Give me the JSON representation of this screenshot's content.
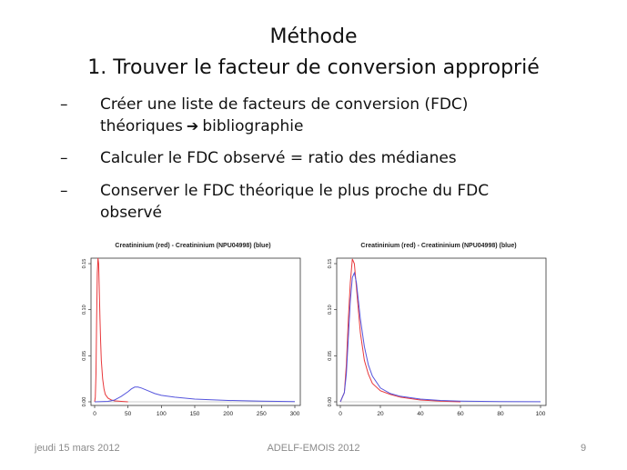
{
  "slide": {
    "title_line1": "Méthode",
    "title_line2": "1. Trouver le facteur de conversion approprié",
    "bullets": [
      {
        "dash": "–",
        "line1": "Créer une liste de facteurs de conversion (FDC)",
        "line2_before": "théoriques",
        "arrow": "➔",
        "line2_after": "bibliographie"
      },
      {
        "dash": "–",
        "line1": "Calculer le FDC observé = ratio des médianes"
      },
      {
        "dash": "–",
        "line1": "Conserver le FDC théorique le plus proche du FDC",
        "line2": "observé"
      }
    ],
    "footer": {
      "date": "jeudi 15 mars 2012",
      "center": "ADELF-EMOIS 2012",
      "page": "9"
    }
  },
  "chart_data": [
    {
      "type": "line",
      "title": "Creatininium (red) - Creatininium (NPU04998) (blue)",
      "xlim": [
        0,
        300
      ],
      "ylim": [
        0,
        0.15
      ],
      "x_ticks": [
        "0",
        "50",
        "100",
        "150",
        "200",
        "250",
        "300"
      ],
      "y_ticks": [
        "0.00",
        "0.05",
        "0.10",
        "0.15"
      ],
      "colors": {
        "red": "#e8383b",
        "blue": "#5555dd"
      },
      "series": [
        {
          "color": "red",
          "x": [
            0,
            1,
            2,
            3,
            4,
            5,
            6,
            7,
            8,
            9,
            10,
            12,
            14,
            16,
            20,
            25,
            30,
            40,
            50
          ],
          "y": [
            0,
            0.005,
            0.03,
            0.09,
            0.14,
            0.156,
            0.15,
            0.12,
            0.09,
            0.065,
            0.045,
            0.025,
            0.014,
            0.008,
            0.004,
            0.002,
            0.001,
            0.0005,
            0
          ]
        },
        {
          "color": "blue",
          "x": [
            0,
            20,
            30,
            40,
            50,
            55,
            60,
            65,
            70,
            80,
            90,
            100,
            120,
            150,
            200,
            250,
            300
          ],
          "y": [
            0,
            0.0005,
            0.002,
            0.006,
            0.011,
            0.014,
            0.016,
            0.016,
            0.015,
            0.012,
            0.009,
            0.007,
            0.005,
            0.003,
            0.0015,
            0.0007,
            0.0003
          ]
        }
      ]
    },
    {
      "type": "line",
      "title": "Creatininium (red) - Creatininium (NPU04998) (blue)",
      "xlim": [
        0,
        100
      ],
      "ylim": [
        0,
        0.15
      ],
      "x_ticks": [
        "0",
        "20",
        "40",
        "60",
        "80",
        "100"
      ],
      "y_ticks": [
        "0.00",
        "0.05",
        "0.10",
        "0.15"
      ],
      "colors": {
        "red": "#e8383b",
        "blue": "#5555dd"
      },
      "series": [
        {
          "color": "red",
          "x": [
            0,
            2,
            3,
            4,
            5,
            6,
            7,
            8,
            9,
            10,
            12,
            14,
            16,
            20,
            25,
            30,
            40,
            50,
            60
          ],
          "y": [
            0,
            0.01,
            0.04,
            0.09,
            0.13,
            0.155,
            0.15,
            0.125,
            0.1,
            0.075,
            0.045,
            0.03,
            0.02,
            0.012,
            0.008,
            0.005,
            0.002,
            0.0008,
            0
          ]
        },
        {
          "color": "blue",
          "x": [
            0,
            2,
            3,
            4,
            5,
            6,
            7,
            8,
            9,
            10,
            12,
            14,
            16,
            20,
            25,
            30,
            40,
            50,
            60,
            80,
            100
          ],
          "y": [
            0,
            0.01,
            0.03,
            0.07,
            0.11,
            0.135,
            0.14,
            0.13,
            0.11,
            0.09,
            0.06,
            0.04,
            0.028,
            0.015,
            0.009,
            0.006,
            0.003,
            0.0015,
            0.0008,
            0.0003,
            0.0001
          ]
        }
      ]
    }
  ]
}
